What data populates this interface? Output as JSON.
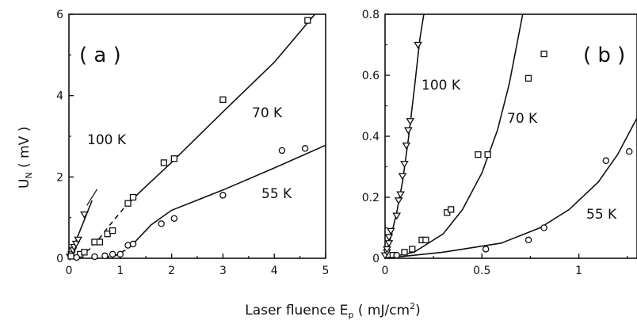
{
  "figure": {
    "ylabel_main": "U",
    "ylabel_sub": "N",
    "ylabel_units": " ( mV )",
    "xlabel_main": "Laser fluence E",
    "xlabel_sub": "p",
    "xlabel_units_a": " ( mJ/cm",
    "xlabel_sup": "2",
    "xlabel_units_b": ")"
  },
  "chart_data": [
    {
      "type": "scatter",
      "panel_label": "( a )",
      "xlim": [
        0,
        5
      ],
      "ylim": [
        0,
        6
      ],
      "x_ticks": [
        "0",
        "1",
        "2",
        "3",
        "4",
        "5"
      ],
      "y_ticks": [
        "0",
        "2",
        "4",
        "6"
      ],
      "series": [
        {
          "name": "100 K",
          "marker": "triangle-down",
          "points": [
            [
              0.02,
              0.04
            ],
            [
              0.05,
              0.1
            ],
            [
              0.08,
              0.2
            ],
            [
              0.1,
              0.28
            ],
            [
              0.14,
              0.36
            ],
            [
              0.18,
              0.46
            ],
            [
              0.3,
              1.08
            ]
          ],
          "fit": [
            [
              0.0,
              0.0
            ],
            [
              0.45,
              1.42
            ]
          ],
          "fit_dashed": []
        },
        {
          "name": "70 K",
          "marker": "square",
          "points": [
            [
              0.04,
              0.05
            ],
            [
              0.22,
              0.1
            ],
            [
              0.3,
              0.15
            ],
            [
              0.5,
              0.4
            ],
            [
              0.6,
              0.4
            ],
            [
              0.75,
              0.6
            ],
            [
              0.85,
              0.68
            ],
            [
              1.15,
              1.35
            ],
            [
              1.25,
              1.5
            ],
            [
              1.85,
              2.35
            ],
            [
              2.05,
              2.45
            ],
            [
              3.0,
              3.9
            ],
            [
              4.65,
              5.85
            ]
          ],
          "fit": [
            [
              1.1,
              1.28
            ],
            [
              1.4,
              1.65
            ],
            [
              2.0,
              2.36
            ],
            [
              3.0,
              3.6
            ],
            [
              4.0,
              4.82
            ],
            [
              4.79,
              6.0
            ]
          ],
          "fit_dashed": [
            [
              0.2,
              0.05
            ],
            [
              0.4,
              0.22
            ],
            [
              0.6,
              0.5
            ],
            [
              0.8,
              0.82
            ],
            [
              1.1,
              1.28
            ]
          ]
        },
        {
          "name": "55 K",
          "marker": "circle",
          "points": [
            [
              0.15,
              0.02
            ],
            [
              0.5,
              0.04
            ],
            [
              0.7,
              0.06
            ],
            [
              0.85,
              0.1
            ],
            [
              1.0,
              0.1
            ],
            [
              1.15,
              0.32
            ],
            [
              1.25,
              0.35
            ],
            [
              1.8,
              0.85
            ],
            [
              2.05,
              0.98
            ],
            [
              3.0,
              1.55
            ],
            [
              4.15,
              2.65
            ],
            [
              4.6,
              2.7
            ]
          ],
          "fit": [
            [
              1.3,
              0.42
            ],
            [
              1.6,
              0.82
            ],
            [
              2.0,
              1.18
            ],
            [
              3.0,
              1.68
            ],
            [
              4.0,
              2.22
            ],
            [
              5.0,
              2.78
            ]
          ],
          "fit_dashed": [
            [
              0.7,
              0.02
            ],
            [
              0.9,
              0.06
            ],
            [
              1.1,
              0.2
            ],
            [
              1.3,
              0.42
            ]
          ]
        }
      ]
    },
    {
      "type": "scatter",
      "panel_label": "( b )",
      "xlim": [
        0,
        1.3
      ],
      "ylim": [
        0,
        0.8
      ],
      "x_ticks": [
        "0",
        "0.5",
        "1"
      ],
      "y_ticks": [
        "0",
        "0.2",
        "0.4",
        "0.6",
        "0.8"
      ],
      "series": [
        {
          "name": "100 K",
          "marker": "triangle-down",
          "points": [
            [
              0.0,
              0.01
            ],
            [
              0.01,
              0.02
            ],
            [
              0.01,
              0.03
            ],
            [
              0.02,
              0.05
            ],
            [
              0.02,
              0.07
            ],
            [
              0.03,
              0.09
            ],
            [
              0.06,
              0.14
            ],
            [
              0.07,
              0.19
            ],
            [
              0.08,
              0.21
            ],
            [
              0.09,
              0.27
            ],
            [
              0.1,
              0.31
            ],
            [
              0.11,
              0.37
            ],
            [
              0.12,
              0.42
            ],
            [
              0.13,
              0.45
            ],
            [
              0.17,
              0.7
            ]
          ],
          "fit": [
            [
              0.0,
              0.0
            ],
            [
              0.03,
              0.07
            ],
            [
              0.06,
              0.15
            ],
            [
              0.09,
              0.25
            ],
            [
              0.12,
              0.39
            ],
            [
              0.15,
              0.55
            ],
            [
              0.18,
              0.72
            ],
            [
              0.2,
              0.8
            ]
          ],
          "fit_dashed": []
        },
        {
          "name": "70 K",
          "marker": "square",
          "points": [
            [
              0.04,
              0.01
            ],
            [
              0.1,
              0.02
            ],
            [
              0.14,
              0.03
            ],
            [
              0.19,
              0.06
            ],
            [
              0.21,
              0.06
            ],
            [
              0.32,
              0.15
            ],
            [
              0.34,
              0.16
            ],
            [
              0.48,
              0.34
            ],
            [
              0.53,
              0.34
            ],
            [
              0.74,
              0.59
            ],
            [
              0.82,
              0.67
            ]
          ],
          "fit": [
            [
              0.0,
              0.0
            ],
            [
              0.15,
              0.02
            ],
            [
              0.3,
              0.08
            ],
            [
              0.4,
              0.16
            ],
            [
              0.5,
              0.28
            ],
            [
              0.58,
              0.42
            ],
            [
              0.64,
              0.57
            ],
            [
              0.68,
              0.7
            ],
            [
              0.71,
              0.8
            ]
          ],
          "fit_dashed": []
        },
        {
          "name": "55 K",
          "marker": "circle",
          "points": [
            [
              0.06,
              0.01
            ],
            [
              0.52,
              0.03
            ],
            [
              0.74,
              0.06
            ],
            [
              0.82,
              0.1
            ],
            [
              1.14,
              0.32
            ],
            [
              1.26,
              0.35
            ]
          ],
          "fit": [
            [
              0.0,
              0.0
            ],
            [
              0.3,
              0.02
            ],
            [
              0.6,
              0.05
            ],
            [
              0.8,
              0.1
            ],
            [
              0.95,
              0.16
            ],
            [
              1.1,
              0.25
            ],
            [
              1.2,
              0.34
            ],
            [
              1.3,
              0.46
            ],
            [
              1.34,
              0.52
            ]
          ],
          "fit_dashed": []
        }
      ]
    }
  ]
}
